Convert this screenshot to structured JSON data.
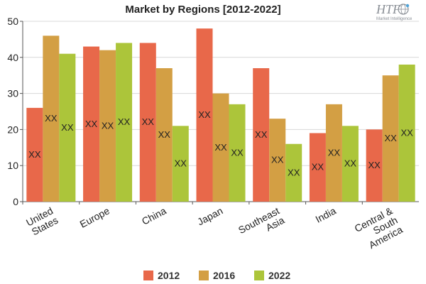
{
  "chart_data": {
    "type": "bar",
    "title": "Market by Regions [2012-2022]",
    "categories": [
      "United States",
      "Europe",
      "China",
      "Japan",
      "Southeast Asia",
      "India",
      "Central & South America"
    ],
    "category_lines": [
      [
        "United",
        "States"
      ],
      [
        "Europe"
      ],
      [
        "China"
      ],
      [
        "Japan"
      ],
      [
        "Southeast",
        "Asia"
      ],
      [
        "India"
      ],
      [
        "Central &",
        "South",
        "America"
      ]
    ],
    "series": [
      {
        "name": "2012",
        "color": "#e8684a",
        "values": [
          26,
          43,
          44,
          48,
          37,
          19,
          20
        ]
      },
      {
        "name": "2016",
        "color": "#d39f44",
        "values": [
          46,
          42,
          37,
          30,
          23,
          27,
          35
        ]
      },
      {
        "name": "2022",
        "color": "#acc53a",
        "values": [
          41,
          44,
          21,
          27,
          16,
          21,
          38
        ]
      }
    ],
    "data_label": "XX",
    "ylim": [
      0,
      50
    ],
    "yticks": [
      0,
      10,
      20,
      30,
      40,
      50
    ],
    "grid": "horizontal",
    "legend": "bottom-center",
    "xlabel": "",
    "ylabel": ""
  },
  "logo": {
    "text": "HTF",
    "subtext": "Market Intelligence"
  }
}
